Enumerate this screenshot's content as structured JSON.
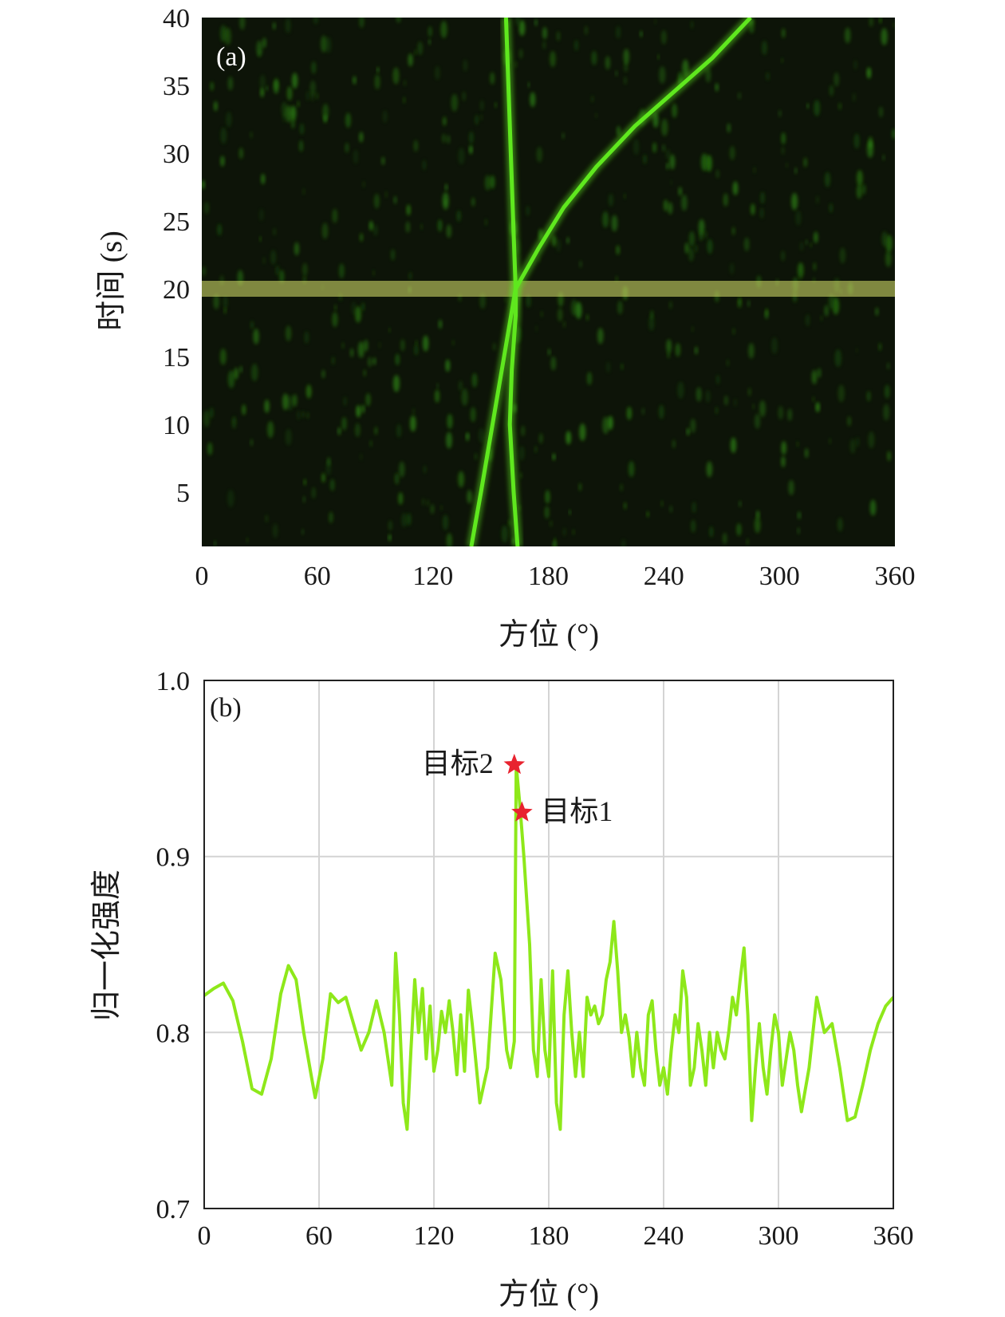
{
  "chart_data": [
    {
      "type": "heatmap",
      "panel_label": "(a)",
      "xlabel": "方位 (°)",
      "ylabel": "时间 (s)",
      "xlim": [
        0,
        360
      ],
      "ylim": [
        1,
        40
      ],
      "x_ticks": [
        "0",
        "60",
        "120",
        "180",
        "240",
        "300",
        "360"
      ],
      "y_ticks": [
        "5",
        "10",
        "15",
        "20",
        "25",
        "30",
        "35",
        "40"
      ],
      "colors": {
        "background": "#0d1408",
        "trace": "#5fe81e",
        "highlight": "#dfe870"
      },
      "highlight_time": 20,
      "tracks": [
        {
          "id": "track-1",
          "points": [
            [
              164,
              1
            ],
            [
              162,
              5
            ],
            [
              160,
              10
            ],
            [
              161,
              14
            ],
            [
              163,
              18
            ],
            [
              163,
              20
            ],
            [
              162,
              24
            ],
            [
              161,
              28
            ],
            [
              160,
              32
            ],
            [
              159,
              36
            ],
            [
              158,
              40
            ]
          ]
        },
        {
          "id": "track-2",
          "points": [
            [
              140,
              1
            ],
            [
              145,
              5
            ],
            [
              151,
              10
            ],
            [
              157,
              15
            ],
            [
              163,
              20
            ],
            [
              175,
              23
            ],
            [
              188,
              26
            ],
            [
              205,
              29
            ],
            [
              225,
              32
            ],
            [
              245,
              34.5
            ],
            [
              265,
              37
            ],
            [
              285,
              40
            ]
          ]
        }
      ]
    },
    {
      "type": "line",
      "panel_label": "(b)",
      "xlabel": "方位 (°)",
      "ylabel": "归一化强度",
      "xlim": [
        0,
        360
      ],
      "ylim": [
        0.7,
        1.0
      ],
      "x_ticks": [
        "0",
        "60",
        "120",
        "180",
        "240",
        "300",
        "360"
      ],
      "y_ticks": [
        "0.7",
        "0.8",
        "0.9",
        "1.0"
      ],
      "grid": true,
      "colors": {
        "line": "#8ee81a",
        "marker": "#e8232f"
      },
      "series": [
        {
          "x": [
            0,
            5,
            10,
            15,
            20,
            25,
            30,
            35,
            40,
            44,
            48,
            52,
            56,
            58,
            62,
            66,
            70,
            74,
            78,
            82,
            86,
            90,
            94,
            98,
            100,
            102,
            104,
            106,
            108,
            110,
            112,
            114,
            116,
            118,
            120,
            122,
            124,
            126,
            128,
            130,
            132,
            134,
            136,
            138,
            140,
            144,
            148,
            152,
            155,
            158,
            160,
            162,
            163,
            165,
            167,
            170,
            172,
            174,
            176,
            178,
            180,
            182,
            184,
            186,
            188,
            190,
            192,
            194,
            196,
            198,
            200,
            202,
            204,
            206,
            208,
            210,
            212,
            214,
            216,
            218,
            220,
            222,
            224,
            226,
            228,
            230,
            232,
            234,
            236,
            238,
            240,
            242,
            244,
            246,
            248,
            250,
            252,
            254,
            256,
            258,
            260,
            262,
            264,
            266,
            268,
            270,
            272,
            274,
            276,
            278,
            280,
            282,
            284,
            286,
            288,
            290,
            292,
            294,
            296,
            298,
            300,
            302,
            304,
            306,
            308,
            310,
            312,
            316,
            320,
            324,
            328,
            332,
            336,
            340,
            344,
            348,
            352,
            356,
            360
          ],
          "y": [
            0.821,
            0.825,
            0.828,
            0.818,
            0.795,
            0.768,
            0.765,
            0.785,
            0.822,
            0.838,
            0.83,
            0.8,
            0.775,
            0.763,
            0.785,
            0.822,
            0.817,
            0.82,
            0.805,
            0.79,
            0.8,
            0.818,
            0.8,
            0.77,
            0.845,
            0.81,
            0.76,
            0.745,
            0.79,
            0.83,
            0.8,
            0.825,
            0.785,
            0.815,
            0.778,
            0.79,
            0.812,
            0.8,
            0.818,
            0.8,
            0.776,
            0.81,
            0.778,
            0.824,
            0.805,
            0.76,
            0.78,
            0.845,
            0.83,
            0.79,
            0.78,
            0.795,
            0.952,
            0.928,
            0.9,
            0.85,
            0.79,
            0.775,
            0.83,
            0.79,
            0.775,
            0.835,
            0.76,
            0.745,
            0.81,
            0.835,
            0.8,
            0.775,
            0.8,
            0.775,
            0.82,
            0.81,
            0.815,
            0.805,
            0.81,
            0.83,
            0.84,
            0.863,
            0.835,
            0.8,
            0.81,
            0.797,
            0.775,
            0.8,
            0.78,
            0.77,
            0.81,
            0.818,
            0.79,
            0.77,
            0.78,
            0.765,
            0.79,
            0.81,
            0.8,
            0.835,
            0.82,
            0.77,
            0.78,
            0.805,
            0.79,
            0.77,
            0.8,
            0.78,
            0.8,
            0.79,
            0.785,
            0.8,
            0.82,
            0.81,
            0.83,
            0.848,
            0.81,
            0.75,
            0.78,
            0.805,
            0.78,
            0.765,
            0.79,
            0.81,
            0.8,
            0.77,
            0.785,
            0.8,
            0.79,
            0.77,
            0.755,
            0.78,
            0.82,
            0.8,
            0.805,
            0.78,
            0.75,
            0.752,
            0.77,
            0.79,
            0.805,
            0.815,
            0.82
          ]
        }
      ],
      "markers": [
        {
          "label": "目标2",
          "x": 162,
          "y": 0.952
        },
        {
          "label": "目标1",
          "x": 166,
          "y": 0.925
        }
      ]
    }
  ]
}
